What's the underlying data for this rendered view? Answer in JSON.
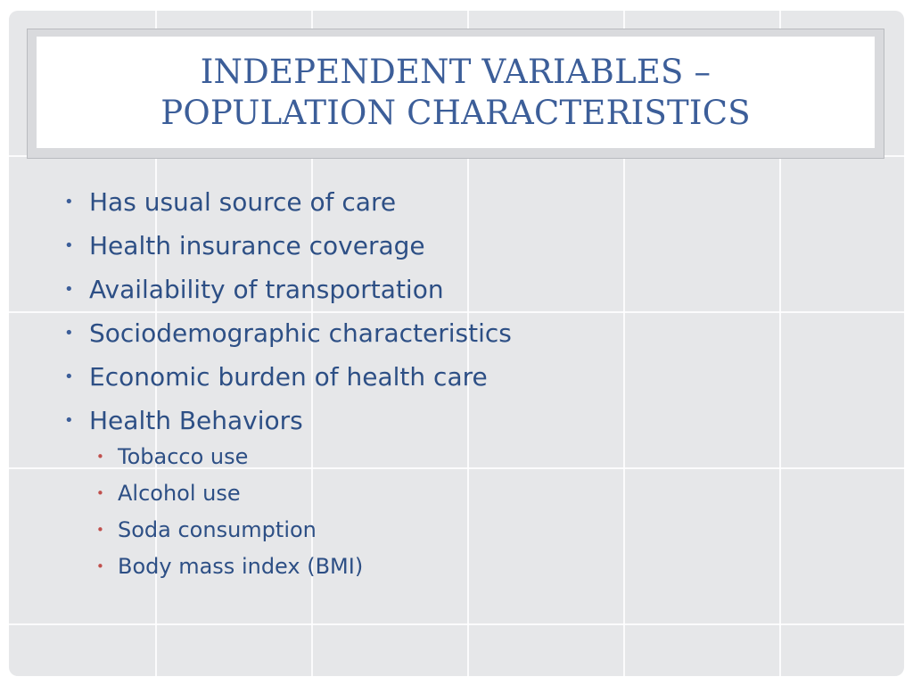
{
  "slide": {
    "title_lines": [
      "INDEPENDENT VARIABLES –",
      "POPULATION CHARACTERISTICS"
    ],
    "bullets": [
      "Has usual source of care",
      "Health insurance coverage",
      "Availability of transportation",
      "Sociodemographic characteristics",
      "Economic burden of health care",
      "Health Behaviors"
    ],
    "sub_bullets": [
      "Tobacco use",
      "Alcohol use",
      "Soda consumption",
      "Body mass index (BMI)"
    ],
    "bullet_glyph": "•",
    "colors": {
      "title": "#3c5e99",
      "body_text": "#2d4f85",
      "sub_bullet_marker": "#c0504d",
      "background": "#e6e7e9"
    }
  }
}
